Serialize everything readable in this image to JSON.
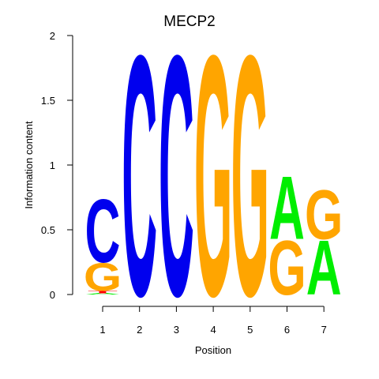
{
  "chart_data": {
    "type": "sequence-logo",
    "title": "MECP2",
    "xlabel": "Position",
    "ylabel": "Information content",
    "ylim": [
      0,
      2
    ],
    "yticks": [
      "0",
      "0.5",
      "1",
      "1.5",
      "2"
    ],
    "positions": [
      "1",
      "2",
      "3",
      "4",
      "5",
      "6",
      "7"
    ],
    "colors": {
      "A": "#00ee00",
      "C": "#0000ee",
      "G": "#ffa500",
      "T": "#ff0000"
    },
    "stacks": [
      [
        {
          "letter": "A",
          "height": 0.01
        },
        {
          "letter": "T",
          "height": 0.02
        },
        {
          "letter": "G",
          "height": 0.22
        },
        {
          "letter": "C",
          "height": 0.5
        }
      ],
      [
        {
          "letter": "C",
          "height": 1.91
        }
      ],
      [
        {
          "letter": "C",
          "height": 1.91
        }
      ],
      [
        {
          "letter": "G",
          "height": 1.91
        }
      ],
      [
        {
          "letter": "G",
          "height": 1.91
        }
      ],
      [
        {
          "letter": "G",
          "height": 0.43
        },
        {
          "letter": "A",
          "height": 0.5
        }
      ],
      [
        {
          "letter": "A",
          "height": 0.43
        },
        {
          "letter": "G",
          "height": 0.39
        }
      ]
    ]
  }
}
